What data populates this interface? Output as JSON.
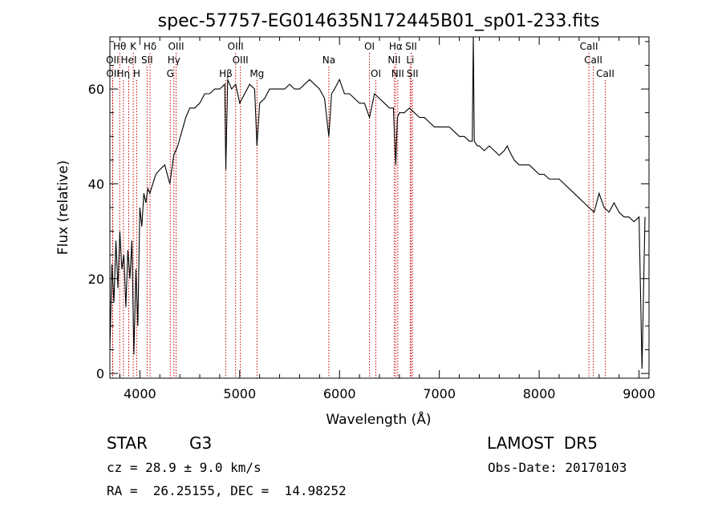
{
  "chart_data": {
    "type": "line",
    "title": "spec-57757-EG014635N172445B01_sp01-233.fits",
    "xlabel": "Wavelength (Å)",
    "ylabel": "Flux (relative)",
    "xlim": [
      3700,
      9100
    ],
    "ylim": [
      -1,
      71
    ],
    "x_ticks": [
      4000,
      5000,
      6000,
      7000,
      8000,
      9000
    ],
    "y_ticks": [
      0,
      20,
      40,
      60
    ],
    "x_tick_labels": [
      "4000",
      "5000",
      "6000",
      "7000",
      "8000",
      "9000"
    ],
    "y_tick_labels": [
      "0",
      "20",
      "40",
      "60"
    ],
    "grid": false,
    "color": "#000000",
    "line_marker_color": "#cc0000",
    "series": [
      {
        "x": [
          3700,
          3720,
          3740,
          3760,
          3780,
          3800,
          3820,
          3840,
          3860,
          3880,
          3900,
          3920,
          3940,
          3960,
          3980,
          4000,
          4020,
          4040,
          4060,
          4080,
          4100,
          4130,
          4160,
          4200,
          4250,
          4300,
          4340,
          4380,
          4420,
          4460,
          4500,
          4550,
          4600,
          4650,
          4700,
          4750,
          4800,
          4850,
          4861,
          4880,
          4920,
          4960,
          5000,
          5050,
          5100,
          5150,
          5173,
          5200,
          5250,
          5300,
          5350,
          5400,
          5450,
          5500,
          5550,
          5600,
          5650,
          5700,
          5750,
          5800,
          5850,
          5893,
          5920,
          5950,
          6000,
          6050,
          6100,
          6150,
          6200,
          6250,
          6300,
          6350,
          6400,
          6450,
          6500,
          6540,
          6563,
          6580,
          6600,
          6650,
          6700,
          6750,
          6800,
          6850,
          6900,
          6950,
          7000,
          7050,
          7100,
          7150,
          7200,
          7250,
          7300,
          7330,
          7340,
          7350,
          7380,
          7400,
          7450,
          7500,
          7550,
          7600,
          7650,
          7680,
          7700,
          7750,
          7800,
          7850,
          7900,
          7950,
          8000,
          8050,
          8100,
          8150,
          8200,
          8250,
          8300,
          8350,
          8400,
          8450,
          8500,
          8550,
          8600,
          8650,
          8700,
          8750,
          8800,
          8850,
          8900,
          8950,
          9000,
          9030,
          9060
        ],
        "y": [
          5,
          23,
          15,
          28,
          18,
          30,
          22,
          25,
          14,
          26,
          20,
          28,
          4,
          22,
          10,
          35,
          31,
          38,
          36,
          39,
          38,
          40,
          42,
          43,
          44,
          40,
          46,
          48,
          51,
          54,
          56,
          56,
          57,
          59,
          59,
          60,
          60,
          61,
          43,
          62,
          60,
          61,
          57,
          59,
          61,
          60,
          48,
          57,
          58,
          60,
          60,
          60,
          60,
          61,
          60,
          60,
          61,
          62,
          61,
          60,
          58,
          50,
          59,
          60,
          62,
          59,
          59,
          58,
          57,
          57,
          54,
          59,
          58,
          57,
          56,
          56,
          44,
          54,
          55,
          55,
          56,
          55,
          54,
          54,
          53,
          52,
          52,
          52,
          52,
          51,
          50,
          50,
          49,
          49,
          71,
          49,
          48,
          48,
          47,
          48,
          47,
          46,
          47,
          48,
          47,
          45,
          44,
          44,
          44,
          43,
          42,
          42,
          41,
          41,
          41,
          40,
          39,
          38,
          37,
          36,
          35,
          34,
          38,
          35,
          34,
          36,
          34,
          33,
          33,
          32,
          33,
          1,
          33
        ]
      }
    ],
    "line_ids": {
      "row1": [
        {
          "label": "Hθ",
          "x": 3798
        },
        {
          "label": "K",
          "x": 3934
        },
        {
          "label": "Hδ",
          "x": 4102
        },
        {
          "label": "OIII",
          "x": 4363
        },
        {
          "label": "OIII",
          "x": 4959
        },
        {
          "label": "OI",
          "x": 6300
        },
        {
          "label": "Hα",
          "x": 6563
        },
        {
          "label": "SII",
          "x": 6717
        },
        {
          "label": "CaII",
          "x": 8498
        }
      ],
      "row2": [
        {
          "label": "OII",
          "x": 3727
        },
        {
          "label": "HeI",
          "x": 3889
        },
        {
          "label": "SII",
          "x": 4072
        },
        {
          "label": "Hγ",
          "x": 4341
        },
        {
          "label": "OIII",
          "x": 5007
        },
        {
          "label": "Na",
          "x": 5893
        },
        {
          "label": "NII",
          "x": 6548
        },
        {
          "label": "Li",
          "x": 6708
        },
        {
          "label": "CaII",
          "x": 8542
        }
      ],
      "row3": [
        {
          "label": "OII",
          "x": 3729
        },
        {
          "label": "Hη",
          "x": 3835
        },
        {
          "label": "H",
          "x": 3968
        },
        {
          "label": "G",
          "x": 4305
        },
        {
          "label": "Hβ",
          "x": 4861
        },
        {
          "label": "Mg",
          "x": 5173
        },
        {
          "label": "OI",
          "x": 6364
        },
        {
          "label": "NII",
          "x": 6583
        },
        {
          "label": "SII",
          "x": 6731
        },
        {
          "label": "CaII",
          "x": 8662
        }
      ]
    }
  },
  "info": {
    "class_label": "STAR",
    "subclass_label": "G3",
    "survey_label": "LAMOST  DR5",
    "cz_text": "cz = 28.9 ± 9.0 km/s",
    "obs_date_text": "Obs-Date: 20170103",
    "coords_text": "RA =  26.25155, DEC =  14.98252"
  }
}
